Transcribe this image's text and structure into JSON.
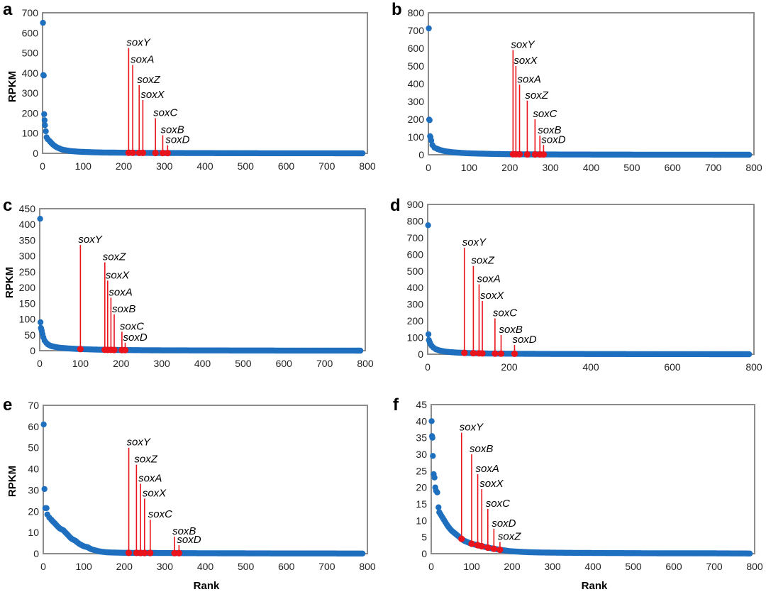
{
  "x_label": "Rank",
  "y_label": "RPKM",
  "colors": {
    "curve": "#1f6fbf",
    "highlight": "#e8131b",
    "axis": "#8c8c8c"
  },
  "chart_data": [
    {
      "panel": "a",
      "type": "scatter",
      "ylim": [
        0,
        700
      ],
      "yticks": [
        0,
        100,
        200,
        300,
        400,
        500,
        600,
        700
      ],
      "xlim": [
        0,
        800
      ],
      "xticks": [
        0,
        100,
        200,
        300,
        400,
        500,
        600,
        700,
        800
      ],
      "curve_points": [
        [
          1,
          650
        ],
        [
          2,
          390
        ],
        [
          3,
          388
        ],
        [
          4,
          195
        ],
        [
          5,
          165
        ],
        [
          6,
          140
        ],
        [
          8,
          110
        ],
        [
          10,
          80
        ],
        [
          13,
          70
        ],
        [
          18,
          60
        ],
        [
          25,
          45
        ],
        [
          35,
          30
        ],
        [
          50,
          18
        ],
        [
          70,
          11
        ],
        [
          100,
          7
        ],
        [
          150,
          4
        ],
        [
          200,
          3
        ],
        [
          300,
          1.5
        ],
        [
          400,
          1
        ],
        [
          500,
          0.6
        ],
        [
          600,
          0.4
        ],
        [
          700,
          0.2
        ],
        [
          790,
          0.1
        ]
      ],
      "highlights": [
        {
          "gene": "soxY",
          "x": 212,
          "y": 525
        },
        {
          "gene": "soxA",
          "x": 222,
          "y": 440
        },
        {
          "gene": "soxZ",
          "x": 238,
          "y": 340
        },
        {
          "gene": "soxX",
          "x": 247,
          "y": 265
        },
        {
          "gene": "soxC",
          "x": 278,
          "y": 175
        },
        {
          "gene": "soxB",
          "x": 296,
          "y": 90
        },
        {
          "gene": "soxD",
          "x": 308,
          "y": 40
        }
      ]
    },
    {
      "panel": "b",
      "type": "scatter",
      "ylim": [
        0,
        800
      ],
      "yticks": [
        0,
        100,
        200,
        300,
        400,
        500,
        600,
        700,
        800
      ],
      "xlim": [
        0,
        800
      ],
      "xticks": [
        0,
        100,
        200,
        300,
        400,
        500,
        600,
        700,
        800
      ],
      "curve_points": [
        [
          1,
          712
        ],
        [
          2,
          198
        ],
        [
          3,
          195
        ],
        [
          4,
          105
        ],
        [
          5,
          100
        ],
        [
          7,
          80
        ],
        [
          10,
          55
        ],
        [
          15,
          40
        ],
        [
          25,
          30
        ],
        [
          40,
          20
        ],
        [
          60,
          14
        ],
        [
          100,
          8
        ],
        [
          150,
          5
        ],
        [
          200,
          3
        ],
        [
          300,
          1.5
        ],
        [
          400,
          1
        ],
        [
          500,
          0.6
        ],
        [
          600,
          0.4
        ],
        [
          700,
          0.2
        ],
        [
          790,
          0.1
        ]
      ],
      "highlights": [
        {
          "gene": "soxY",
          "x": 208,
          "y": 590
        },
        {
          "gene": "soxX",
          "x": 215,
          "y": 500
        },
        {
          "gene": "soxA",
          "x": 224,
          "y": 395
        },
        {
          "gene": "soxZ",
          "x": 243,
          "y": 305
        },
        {
          "gene": "soxC",
          "x": 262,
          "y": 200
        },
        {
          "gene": "soxB",
          "x": 274,
          "y": 108
        },
        {
          "gene": "soxD",
          "x": 283,
          "y": 55
        }
      ]
    },
    {
      "panel": "c",
      "type": "scatter",
      "ylim": [
        0,
        450
      ],
      "yticks": [
        0,
        50,
        100,
        150,
        200,
        250,
        300,
        350,
        400,
        450
      ],
      "xlim": [
        0,
        800
      ],
      "xticks": [
        0,
        100,
        200,
        300,
        400,
        500,
        600,
        700,
        800
      ],
      "curve_points": [
        [
          1,
          418
        ],
        [
          2,
          90
        ],
        [
          3,
          72
        ],
        [
          4,
          68
        ],
        [
          5,
          62
        ],
        [
          7,
          52
        ],
        [
          9,
          42
        ],
        [
          12,
          32
        ],
        [
          16,
          25
        ],
        [
          22,
          18
        ],
        [
          30,
          14
        ],
        [
          45,
          10
        ],
        [
          60,
          8
        ],
        [
          100,
          5
        ],
        [
          150,
          3
        ],
        [
          200,
          2
        ],
        [
          300,
          1
        ],
        [
          400,
          0.7
        ],
        [
          500,
          0.5
        ],
        [
          600,
          0.3
        ],
        [
          700,
          0.2
        ],
        [
          790,
          0.1
        ]
      ],
      "highlights": [
        {
          "gene": "soxY",
          "x": 100,
          "y": 335
        },
        {
          "gene": "soxZ",
          "x": 160,
          "y": 280
        },
        {
          "gene": "soxX",
          "x": 167,
          "y": 222
        },
        {
          "gene": "soxA",
          "x": 175,
          "y": 168
        },
        {
          "gene": "soxB",
          "x": 183,
          "y": 115
        },
        {
          "gene": "soxC",
          "x": 202,
          "y": 60
        },
        {
          "gene": "soxD",
          "x": 210,
          "y": 25
        }
      ]
    },
    {
      "panel": "d",
      "type": "scatter",
      "ylim": [
        0,
        900
      ],
      "yticks": [
        0,
        100,
        200,
        300,
        400,
        500,
        600,
        700,
        800,
        900
      ],
      "xlim": [
        0,
        800
      ],
      "xticks": [
        0,
        200,
        400,
        600,
        800
      ],
      "curve_points": [
        [
          1,
          775
        ],
        [
          2,
          120
        ],
        [
          3,
          85
        ],
        [
          5,
          72
        ],
        [
          7,
          60
        ],
        [
          10,
          50
        ],
        [
          14,
          40
        ],
        [
          20,
          30
        ],
        [
          30,
          22
        ],
        [
          45,
          15
        ],
        [
          70,
          10
        ],
        [
          100,
          7
        ],
        [
          150,
          4
        ],
        [
          200,
          3
        ],
        [
          300,
          1.5
        ],
        [
          400,
          1
        ],
        [
          500,
          0.6
        ],
        [
          600,
          0.4
        ],
        [
          700,
          0.2
        ],
        [
          790,
          0.1
        ]
      ],
      "highlights": [
        {
          "gene": "soxY",
          "x": 90,
          "y": 640
        },
        {
          "gene": "soxZ",
          "x": 112,
          "y": 530
        },
        {
          "gene": "soxA",
          "x": 126,
          "y": 420
        },
        {
          "gene": "soxX",
          "x": 134,
          "y": 320
        },
        {
          "gene": "soxC",
          "x": 165,
          "y": 215
        },
        {
          "gene": "soxB",
          "x": 180,
          "y": 115
        },
        {
          "gene": "soxD",
          "x": 213,
          "y": 55
        }
      ]
    },
    {
      "panel": "e",
      "type": "scatter",
      "ylim": [
        0,
        70
      ],
      "yticks": [
        0,
        10,
        20,
        30,
        40,
        50,
        60,
        70
      ],
      "xlim": [
        0,
        800
      ],
      "xticks": [
        0,
        100,
        200,
        300,
        400,
        500,
        600,
        700,
        800
      ],
      "curve_points": [
        [
          1,
          61
        ],
        [
          3,
          30.5
        ],
        [
          5,
          21.5
        ],
        [
          8,
          21.5
        ],
        [
          10,
          18.5
        ],
        [
          15,
          17
        ],
        [
          20,
          16
        ],
        [
          30,
          14
        ],
        [
          40,
          12
        ],
        [
          50,
          11
        ],
        [
          60,
          9
        ],
        [
          70,
          7
        ],
        [
          80,
          6
        ],
        [
          90,
          4.5
        ],
        [
          100,
          3.5
        ],
        [
          110,
          3
        ],
        [
          120,
          2
        ],
        [
          130,
          1.5
        ],
        [
          140,
          1
        ],
        [
          160,
          0.6
        ],
        [
          200,
          0.4
        ],
        [
          300,
          0.3
        ],
        [
          400,
          0.2
        ],
        [
          500,
          0.15
        ],
        [
          600,
          0.1
        ],
        [
          700,
          0.1
        ],
        [
          790,
          0.05
        ]
      ],
      "highlights": [
        {
          "gene": "soxY",
          "x": 211,
          "y": 50
        },
        {
          "gene": "soxZ",
          "x": 230,
          "y": 42
        },
        {
          "gene": "soxA",
          "x": 240,
          "y": 33
        },
        {
          "gene": "soxX",
          "x": 250,
          "y": 26
        },
        {
          "gene": "soxC",
          "x": 264,
          "y": 16
        },
        {
          "gene": "soxB",
          "x": 324,
          "y": 8
        },
        {
          "gene": "soxD",
          "x": 335,
          "y": 4
        }
      ]
    },
    {
      "panel": "f",
      "type": "scatter",
      "ylim": [
        0,
        45
      ],
      "yticks": [
        0,
        5,
        10,
        15,
        20,
        25,
        30,
        35,
        40,
        45
      ],
      "xlim": [
        0,
        800
      ],
      "xticks": [
        0,
        100,
        200,
        300,
        400,
        500,
        600,
        700,
        800
      ],
      "curve_points": [
        [
          1,
          40
        ],
        [
          2,
          35.5
        ],
        [
          3,
          35
        ],
        [
          4,
          29.5
        ],
        [
          6,
          24
        ],
        [
          8,
          23
        ],
        [
          10,
          20
        ],
        [
          12,
          19
        ],
        [
          15,
          18.5
        ],
        [
          18,
          14
        ],
        [
          20,
          12.5
        ],
        [
          25,
          11.5
        ],
        [
          30,
          10.5
        ],
        [
          35,
          9.5
        ],
        [
          40,
          8.5
        ],
        [
          50,
          7
        ],
        [
          60,
          6
        ],
        [
          70,
          5
        ],
        [
          80,
          4
        ],
        [
          100,
          3
        ],
        [
          120,
          2.4
        ],
        [
          150,
          1.6
        ],
        [
          180,
          1
        ],
        [
          200,
          0.7
        ],
        [
          250,
          0.4
        ],
        [
          300,
          0.3
        ],
        [
          400,
          0.2
        ],
        [
          500,
          0.15
        ],
        [
          600,
          0.1
        ],
        [
          700,
          0.1
        ],
        [
          790,
          0.05
        ]
      ],
      "highlights": [
        {
          "gene": "soxY",
          "x": 75,
          "y": 36.5
        },
        {
          "gene": "soxB",
          "x": 100,
          "y": 30
        },
        {
          "gene": "soxA",
          "x": 115,
          "y": 24
        },
        {
          "gene": "soxX",
          "x": 125,
          "y": 19.5
        },
        {
          "gene": "soxC",
          "x": 140,
          "y": 13.5
        },
        {
          "gene": "soxD",
          "x": 155,
          "y": 7.5
        },
        {
          "gene": "soxZ",
          "x": 170,
          "y": 3.5
        }
      ]
    }
  ]
}
